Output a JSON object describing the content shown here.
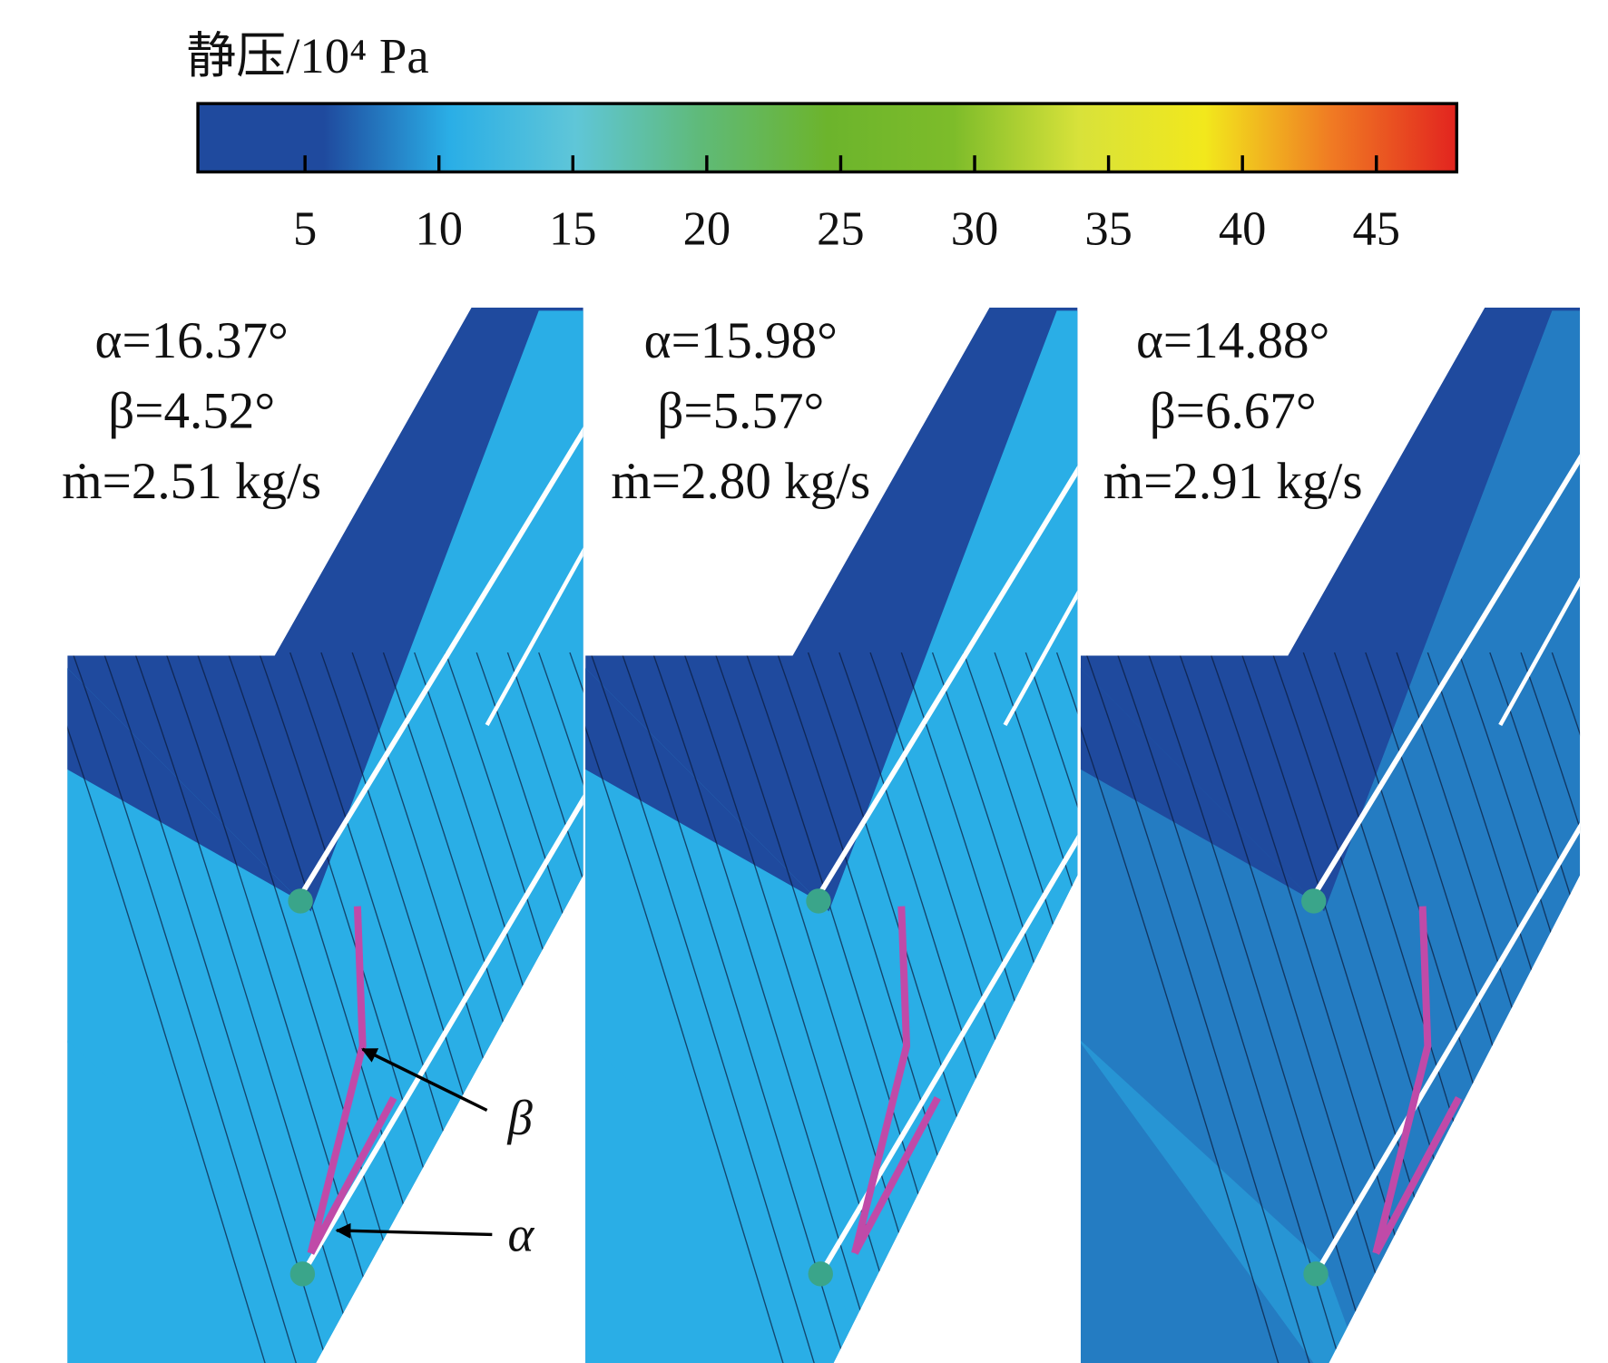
{
  "colorbar": {
    "title": "静压/10⁴ Pa",
    "range": [
      1,
      48
    ],
    "ticks": [
      5,
      10,
      15,
      20,
      25,
      30,
      35,
      40,
      45
    ],
    "colors": [
      "#1f4a9e",
      "#1f4a9e",
      "#2aaee6",
      "#5fc6d8",
      "#5fba78",
      "#6cb42c",
      "#7dbc2a",
      "#d8e23a",
      "#f2e81c",
      "#f07b23",
      "#e2241f"
    ]
  },
  "panels": [
    {
      "alpha": "α=16.37°",
      "beta": "β=4.52°",
      "flow": "ṁ=2.51 kg/s"
    },
    {
      "alpha": "α=15.98°",
      "beta": "β=5.57°",
      "flow": "ṁ=2.80 kg/s"
    },
    {
      "alpha": "α=14.88°",
      "beta": "β=6.67°",
      "flow": "ṁ=2.91 kg/s"
    }
  ],
  "annotations": {
    "beta": "β",
    "alpha": "α"
  }
}
